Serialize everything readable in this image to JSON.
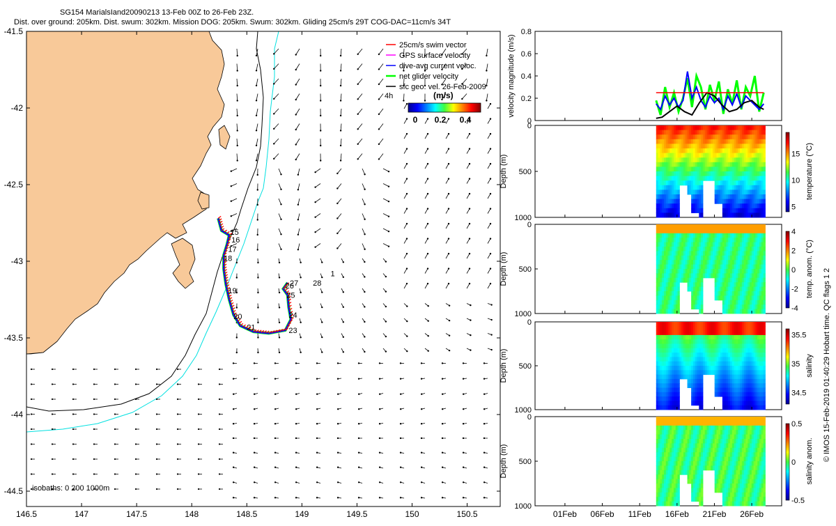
{
  "title": {
    "line1": "SG154 MarialsIand20090213 13-Feb 00Z to 26-Feb 23Z.",
    "line2": "Dist. over ground: 205km. Dist. swum: 302km. Mission DOG: 205km. Swum: 302km. Gliding 25cm/s 29T COG-DAC=11cm/s 34T"
  },
  "credit": "© IMOS 15-Feb-2019 01:40:29 Hobart time. QC flags 1  2",
  "colors": {
    "land": "#f8c999",
    "swim_vector": "#ff0000",
    "gps_velocity": "#ff00ff",
    "dive_avg": "#0000ff",
    "net_glider": "#00ff00",
    "sfc_geo": "#000000",
    "isobath_200": "#00e0e0",
    "isobath_1000": "#000000"
  },
  "chart_data": [
    {
      "type": "scatter",
      "id": "map",
      "xlim": [
        146.5,
        150.8
      ],
      "ylim": [
        -44.6,
        -41.5
      ],
      "x_ticks": [
        "146.5",
        "147",
        "147.5",
        "148",
        "148.5",
        "149",
        "149.5",
        "150",
        "150.5"
      ],
      "y_ticks": [
        "-41.5",
        "-42",
        "-42.5",
        "-43",
        "-43.5",
        "-44",
        "-44.5"
      ],
      "legend": [
        {
          "label": "25cm/s swim vector",
          "color": "#ff0000"
        },
        {
          "label": "GPS surface velocity",
          "color": "#ff00ff"
        },
        {
          "label": "dive-avg current veloc.",
          "color": "#0000ff"
        },
        {
          "label": "net glider velocity",
          "color": "#00ff00"
        },
        {
          "label": "sfc geo. vel. 26-Feb-2009",
          "color": "#000000"
        }
      ],
      "legend_note": "4h",
      "colorbar": {
        "label": "(m/s)",
        "ticks": [
          "0",
          "0.2",
          "0.4"
        ],
        "range": [
          0,
          0.5
        ]
      },
      "isobaths_label": "isobaths: 0   200  1000m",
      "track": [
        [
          148.24,
          -42.72
        ],
        [
          148.27,
          -42.8
        ],
        [
          148.34,
          -42.83
        ],
        [
          148.32,
          -42.89
        ],
        [
          148.29,
          -42.96
        ],
        [
          148.29,
          -43.05
        ],
        [
          148.31,
          -43.15
        ],
        [
          148.34,
          -43.25
        ],
        [
          148.38,
          -43.35
        ],
        [
          148.44,
          -43.42
        ],
        [
          148.56,
          -43.46
        ],
        [
          148.7,
          -43.47
        ],
        [
          148.85,
          -43.45
        ],
        [
          148.9,
          -43.38
        ],
        [
          148.88,
          -43.3
        ],
        [
          148.87,
          -43.22
        ],
        [
          148.83,
          -43.18
        ],
        [
          148.87,
          -43.14
        ]
      ],
      "day_labels": [
        {
          "text": "15",
          "lon": 148.35,
          "lat": -42.81
        },
        {
          "text": "16",
          "lon": 148.36,
          "lat": -42.86
        },
        {
          "text": "17",
          "lon": 148.33,
          "lat": -42.92
        },
        {
          "text": "18",
          "lon": 148.29,
          "lat": -42.98
        },
        {
          "text": "19",
          "lon": 148.33,
          "lat": -43.19
        },
        {
          "text": "20",
          "lon": 148.38,
          "lat": -43.36
        },
        {
          "text": "21",
          "lon": 148.5,
          "lat": -43.43
        },
        {
          "text": "23",
          "lon": 148.88,
          "lat": -43.45
        },
        {
          "text": "24",
          "lon": 148.88,
          "lat": -43.35
        },
        {
          "text": "25",
          "lon": 148.86,
          "lat": -43.22
        },
        {
          "text": "26",
          "lon": 148.85,
          "lat": -43.16
        },
        {
          "text": "27",
          "lon": 148.89,
          "lat": -43.14
        },
        {
          "text": "28",
          "lon": 149.1,
          "lat": -43.14
        },
        {
          "text": "1",
          "lon": 149.26,
          "lat": -43.08
        }
      ]
    },
    {
      "type": "line",
      "id": "velocity",
      "ylabel": "velocity magnitude (m/s)",
      "ylim": [
        0,
        0.8
      ],
      "y_ticks": [
        "0",
        "0.2",
        "0.4",
        "0.6",
        "0.8"
      ],
      "xlim": [
        -3,
        30
      ],
      "series": [
        {
          "name": "net glider velocity",
          "color": "#00ff00",
          "x": [
            13.2,
            13.8,
            14.4,
            15,
            15.6,
            16.2,
            16.8,
            17.4,
            18,
            18.6,
            19.2,
            19.8,
            20.4,
            21,
            21.6,
            22.2,
            22.8,
            23.4,
            24,
            24.6,
            25.2,
            25.8,
            26.4,
            27,
            27.6
          ],
          "values": [
            0.18,
            0.05,
            0.3,
            0.12,
            0.25,
            0.08,
            0.2,
            0.38,
            0.12,
            0.4,
            0.3,
            0.1,
            0.32,
            0.18,
            0.35,
            0.06,
            0.28,
            0.15,
            0.36,
            0.1,
            0.3,
            0.22,
            0.4,
            0.08,
            0.25
          ]
        },
        {
          "name": "dive-avg current veloc.",
          "color": "#0000ff",
          "x": [
            13.2,
            13.8,
            14.4,
            15,
            15.6,
            16.2,
            16.8,
            17.4,
            18,
            18.6,
            19.2,
            19.8,
            20.4,
            21,
            21.6,
            22.2,
            22.8,
            23.4,
            24,
            24.6,
            25.2,
            25.8,
            26.4,
            27,
            27.6
          ],
          "values": [
            0.15,
            0.1,
            0.22,
            0.14,
            0.2,
            0.12,
            0.18,
            0.44,
            0.2,
            0.3,
            0.18,
            0.12,
            0.22,
            0.16,
            0.2,
            0.1,
            0.22,
            0.14,
            0.24,
            0.12,
            0.22,
            0.18,
            0.14,
            0.1,
            0.15
          ]
        },
        {
          "name": "sfc geo. vel.",
          "color": "#000000",
          "x": [
            13.2,
            14,
            15,
            16,
            17,
            18,
            19,
            20,
            21,
            22,
            23,
            24,
            25,
            26,
            27,
            27.6
          ],
          "values": [
            0.02,
            0.03,
            0.08,
            0.13,
            0.08,
            0.05,
            0.16,
            0.25,
            0.22,
            0.14,
            0.08,
            0.1,
            0.16,
            0.18,
            0.12,
            0.1
          ]
        },
        {
          "name": "25cm/s swim vector",
          "color": "#ff0000",
          "x": [
            13.2,
            27.6
          ],
          "values": [
            0.25,
            0.25
          ]
        }
      ]
    },
    {
      "type": "heatmap",
      "id": "temperature",
      "ylabel": "Depth (m)",
      "y_ticks": [
        "0",
        "500",
        "1000"
      ],
      "colorbar_label": "temperature (°C)",
      "colorbar_ticks": [
        "5",
        "10",
        "15"
      ],
      "range": [
        4,
        19
      ]
    },
    {
      "type": "heatmap",
      "id": "temp-anomaly",
      "ylabel": "Depth (m)",
      "y_ticks": [
        "0",
        "500",
        "1000"
      ],
      "colorbar_label": "temp. anom. (°C)",
      "colorbar_ticks": [
        "-4",
        "-2",
        "0",
        "2",
        "4"
      ],
      "range": [
        -4,
        4
      ]
    },
    {
      "type": "heatmap",
      "id": "salinity",
      "ylabel": "Depth (m)",
      "y_ticks": [
        "0",
        "500",
        "1000"
      ],
      "colorbar_label": "salinity",
      "colorbar_ticks": [
        "34.5",
        "35",
        "35.5"
      ],
      "range": [
        34.3,
        35.6
      ]
    },
    {
      "type": "heatmap",
      "id": "salinity-anomaly",
      "ylabel": "Depth (m)",
      "y_ticks": [
        "0",
        "500",
        "1000"
      ],
      "colorbar_label": "salinity anom.",
      "colorbar_ticks": [
        "-0.5",
        "0",
        "0.5"
      ],
      "range": [
        -0.5,
        0.5
      ]
    }
  ],
  "time_axis": {
    "ticks": [
      "01Feb",
      "06Feb",
      "11Feb",
      "16Feb",
      "21Feb",
      "26Feb"
    ],
    "tick_days": [
      1,
      6,
      11,
      16,
      21,
      26
    ]
  }
}
